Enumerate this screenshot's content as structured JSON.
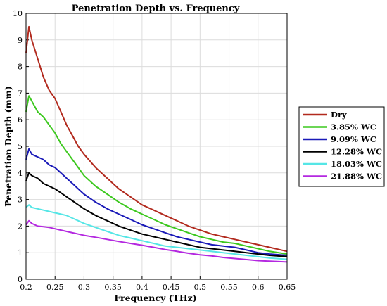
{
  "chart_data": {
    "type": "line",
    "title": "Penetration Depth vs. Frequency",
    "xlabel": "Frequency (THz)",
    "ylabel": "Penetration Depth (mm)",
    "xlim": [
      0.2,
      0.65
    ],
    "ylim": [
      0,
      10
    ],
    "xticks": [
      "0.2",
      "0.25",
      "0.3",
      "0.35",
      "0.4",
      "0.45",
      "0.5",
      "0.55",
      "0.6",
      "0.65"
    ],
    "yticks": [
      "0",
      "1",
      "2",
      "3",
      "4",
      "5",
      "6",
      "7",
      "8",
      "9",
      "10"
    ],
    "grid": true,
    "legend_position": "outside-right",
    "x": [
      0.2,
      0.205,
      0.21,
      0.22,
      0.23,
      0.24,
      0.25,
      0.26,
      0.27,
      0.28,
      0.29,
      0.3,
      0.32,
      0.34,
      0.36,
      0.38,
      0.4,
      0.42,
      0.44,
      0.46,
      0.48,
      0.5,
      0.52,
      0.54,
      0.56,
      0.58,
      0.6,
      0.62,
      0.65
    ],
    "series": [
      {
        "name": "Dry",
        "color": "#b22a1e",
        "values": [
          8.5,
          9.5,
          9.0,
          8.3,
          7.6,
          7.1,
          6.8,
          6.3,
          5.8,
          5.4,
          5.0,
          4.7,
          4.2,
          3.8,
          3.4,
          3.1,
          2.8,
          2.6,
          2.4,
          2.2,
          2.0,
          1.85,
          1.7,
          1.6,
          1.5,
          1.4,
          1.3,
          1.2,
          1.05
        ]
      },
      {
        "name": "3.85% WC",
        "color": "#3cc81e",
        "values": [
          6.3,
          6.9,
          6.7,
          6.3,
          6.1,
          5.8,
          5.5,
          5.1,
          4.8,
          4.5,
          4.2,
          3.9,
          3.5,
          3.2,
          2.9,
          2.65,
          2.45,
          2.25,
          2.05,
          1.9,
          1.75,
          1.6,
          1.5,
          1.4,
          1.35,
          1.25,
          1.15,
          1.05,
          0.95
        ]
      },
      {
        "name": "9.09% WC",
        "color": "#1a1ab8",
        "values": [
          4.5,
          4.9,
          4.7,
          4.6,
          4.5,
          4.3,
          4.2,
          4.0,
          3.8,
          3.6,
          3.4,
          3.2,
          2.9,
          2.65,
          2.45,
          2.25,
          2.05,
          1.9,
          1.75,
          1.6,
          1.5,
          1.4,
          1.3,
          1.25,
          1.2,
          1.1,
          1.0,
          0.95,
          0.9
        ]
      },
      {
        "name": "12.28% WC",
        "color": "#000000",
        "values": [
          3.7,
          4.0,
          3.9,
          3.8,
          3.6,
          3.5,
          3.4,
          3.25,
          3.1,
          2.95,
          2.8,
          2.65,
          2.4,
          2.2,
          2.0,
          1.85,
          1.7,
          1.6,
          1.5,
          1.4,
          1.3,
          1.2,
          1.15,
          1.1,
          1.05,
          1.0,
          0.95,
          0.9,
          0.85
        ]
      },
      {
        "name": "18.03% WC",
        "color": "#55e6e6",
        "values": [
          2.7,
          2.8,
          2.7,
          2.65,
          2.6,
          2.55,
          2.5,
          2.45,
          2.4,
          2.3,
          2.2,
          2.1,
          1.95,
          1.8,
          1.65,
          1.55,
          1.45,
          1.35,
          1.25,
          1.2,
          1.15,
          1.1,
          1.05,
          1.0,
          0.95,
          0.9,
          0.85,
          0.8,
          0.75
        ]
      },
      {
        "name": "21.88% WC",
        "color": "#b428e0",
        "values": [
          2.05,
          2.2,
          2.1,
          2.0,
          1.98,
          1.95,
          1.9,
          1.85,
          1.8,
          1.75,
          1.7,
          1.65,
          1.58,
          1.5,
          1.42,
          1.35,
          1.28,
          1.2,
          1.12,
          1.05,
          0.98,
          0.92,
          0.88,
          0.82,
          0.78,
          0.74,
          0.7,
          0.68,
          0.65
        ]
      }
    ]
  }
}
